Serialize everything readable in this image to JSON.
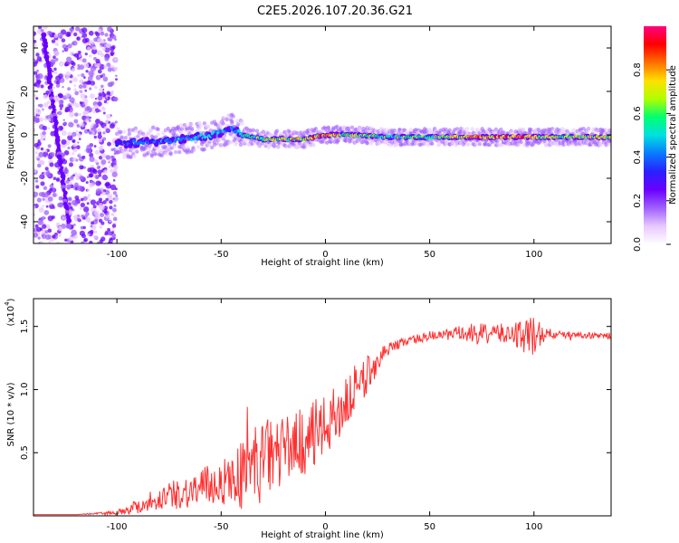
{
  "title": "C2E5.2026.107.20.36.G21",
  "chart_data": [
    {
      "type": "heatmap",
      "xlabel": "Height of straight line (km)",
      "ylabel": "Frequency (Hz)",
      "xlim": [
        -140,
        137
      ],
      "ylim": [
        -50,
        50
      ],
      "x_ticks": [
        -100,
        -50,
        0,
        50,
        100
      ],
      "y_ticks": [
        -40,
        -20,
        0,
        20,
        40
      ],
      "colorbar": {
        "label": "Normalized spectral amplitude",
        "range": [
          0.0,
          1.0
        ],
        "ticks": [
          0.0,
          0.2,
          0.4,
          0.6,
          0.8
        ],
        "colormap": [
          "#ffffff",
          "#e8c8ff",
          "#a060ff",
          "#6a00ff",
          "#2a20ff",
          "#0a7aff",
          "#00e0e0",
          "#00ff70",
          "#b0ff00",
          "#ffe000",
          "#ff7000",
          "#ff0000",
          "#ff0080"
        ]
      },
      "ridge": {
        "x": [
          -100,
          -80,
          -60,
          -50,
          -45,
          -40,
          -30,
          -20,
          -10,
          0,
          10,
          30,
          50,
          70,
          90,
          110,
          137
        ],
        "y": [
          -4,
          -3,
          -1,
          1,
          3,
          0,
          -2,
          -2,
          -2,
          0,
          0,
          -1,
          -1,
          -1,
          -1,
          -1,
          -1
        ],
        "amplitude": [
          0.4,
          0.45,
          0.5,
          0.5,
          0.45,
          0.55,
          0.7,
          0.75,
          0.8,
          0.9,
          0.7,
          0.6,
          0.65,
          0.85,
          0.95,
          0.7,
          0.8
        ]
      },
      "noise_region_x": [
        -140,
        -100
      ],
      "streak": {
        "x": [
          -135,
          -123
        ],
        "y": [
          46,
          -42
        ]
      },
      "colors": {
        "axes": "#000000"
      }
    },
    {
      "type": "line",
      "xlabel": "Height of straight line (km)",
      "ylabel": "SNR (10 * v/v)",
      "scale_label": "(x10",
      "scale_exponent": "4",
      "xlim": [
        -140,
        137
      ],
      "ylim": [
        0,
        1.72
      ],
      "x_ticks": [
        -100,
        -50,
        0,
        50,
        100
      ],
      "y_ticks": [
        0.5,
        1.0,
        1.5
      ],
      "y_tick_labels": [
        "0.5",
        "1.0",
        "1.5"
      ],
      "series": [
        {
          "color": "#ff3030",
          "x": [
            -140,
            -120,
            -100,
            -90,
            -80,
            -70,
            -60,
            -50,
            -40,
            -35,
            -30,
            -25,
            -20,
            -15,
            -10,
            -5,
            0,
            5,
            10,
            15,
            20,
            25,
            30,
            40,
            50,
            60,
            70,
            80,
            90,
            95,
            100,
            105,
            110,
            120,
            130,
            137
          ],
          "y": [
            0.01,
            0.01,
            0.03,
            0.09,
            0.16,
            0.2,
            0.25,
            0.3,
            0.38,
            0.45,
            0.5,
            0.55,
            0.58,
            0.62,
            0.65,
            0.7,
            0.75,
            0.85,
            0.95,
            1.05,
            1.15,
            1.25,
            1.33,
            1.4,
            1.43,
            1.45,
            1.46,
            1.46,
            1.46,
            1.47,
            1.44,
            1.46,
            1.44,
            1.44,
            1.43,
            1.43
          ],
          "noise": [
            0,
            0,
            0.02,
            0.08,
            0.12,
            0.15,
            0.2,
            0.22,
            0.35,
            0.45,
            0.4,
            0.38,
            0.35,
            0.3,
            0.35,
            0.35,
            0.3,
            0.3,
            0.3,
            0.25,
            0.2,
            0.12,
            0.06,
            0.04,
            0.05,
            0.06,
            0.1,
            0.1,
            0.1,
            0.2,
            0.25,
            0.08,
            0.04,
            0.03,
            0.03,
            0.03
          ]
        }
      ]
    }
  ]
}
